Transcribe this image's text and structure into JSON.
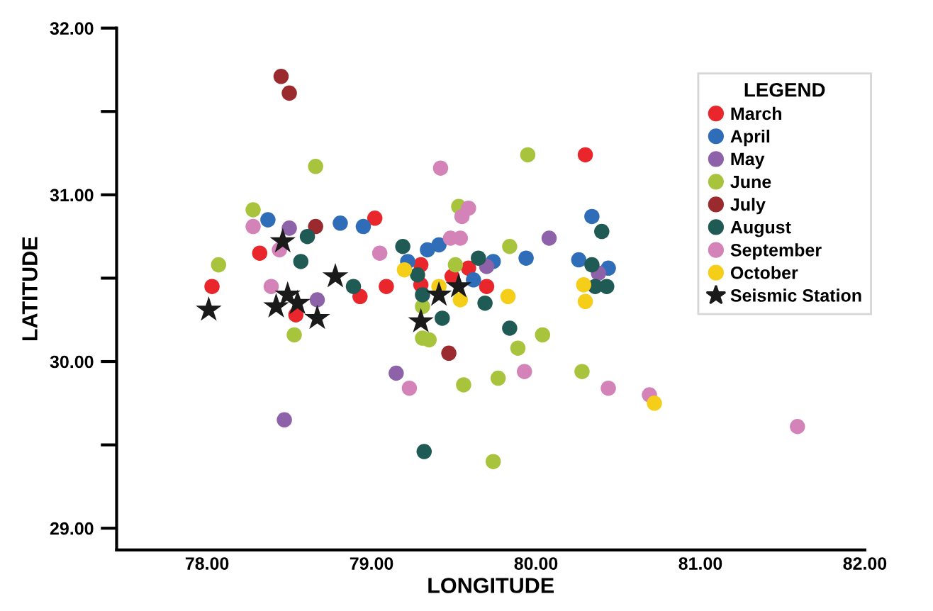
{
  "chart_data": {
    "type": "scatter",
    "xlabel": "LONGITUDE",
    "ylabel": "LATITUDE",
    "legend_title": "LEGEND",
    "legend": "top right",
    "grid": false,
    "marker": "circle",
    "xlim": [
      77.45,
      82.0
    ],
    "xticks": [
      {
        "value": 78,
        "label": "78.00"
      },
      {
        "value": 79,
        "label": "79.00"
      },
      {
        "value": 80,
        "label": "80.00"
      },
      {
        "value": 81,
        "label": "81.00"
      },
      {
        "value": 82,
        "label": "82.00"
      }
    ],
    "ylim": [
      28.87,
      32.0
    ],
    "yticks": [
      {
        "value": 29,
        "label": "29.00"
      },
      {
        "value": 29.5,
        "label": null
      },
      {
        "value": 30,
        "label": "30.00"
      },
      {
        "value": 30.5,
        "label": null
      },
      {
        "value": 31,
        "label": "31.00"
      },
      {
        "value": 31.5,
        "label": null
      },
      {
        "value": 32,
        "label": "32.00"
      }
    ],
    "series": [
      {
        "name": "March",
        "color": "#e8262b",
        "x": [
          78.03,
          78.32,
          78.54,
          78.93,
          79.02,
          79.09,
          79.3,
          79.3,
          79.49,
          79.59,
          79.7,
          80.3
        ],
        "values": [
          30.45,
          30.65,
          30.28,
          30.39,
          30.86,
          30.45,
          30.58,
          30.46,
          30.51,
          30.56,
          30.45,
          31.24
        ]
      },
      {
        "name": "April",
        "color": "#2f6db8",
        "x": [
          78.37,
          78.81,
          78.95,
          79.22,
          79.34,
          79.41,
          79.62,
          79.74,
          79.94,
          80.26,
          80.34,
          80.44
        ],
        "values": [
          30.85,
          30.83,
          30.81,
          30.6,
          30.67,
          30.7,
          30.49,
          30.6,
          30.62,
          30.61,
          30.87,
          30.56
        ]
      },
      {
        "name": "May",
        "color": "#8e62a8",
        "x": [
          78.5,
          78.67,
          79.7,
          80.08,
          80.38,
          79.15,
          78.47
        ],
        "values": [
          30.8,
          30.37,
          30.57,
          30.74,
          30.53,
          29.93,
          29.65
        ]
      },
      {
        "name": "June",
        "color": "#a7c43c",
        "x": [
          78.66,
          78.28,
          78.07,
          78.53,
          79.53,
          79.95,
          79.84,
          79.51,
          79.31,
          79.31,
          79.35,
          80.04,
          79.89,
          79.56,
          79.77,
          80.28,
          79.74
        ],
        "values": [
          31.17,
          30.91,
          30.58,
          30.16,
          30.93,
          31.24,
          30.69,
          30.58,
          30.33,
          30.14,
          30.13,
          30.16,
          30.08,
          29.86,
          29.9,
          29.94,
          29.4
        ]
      },
      {
        "name": "July",
        "color": "#9b2a2e",
        "x": [
          78.45,
          78.5,
          78.66,
          79.47
        ],
        "values": [
          31.71,
          31.61,
          30.81,
          30.05
        ]
      },
      {
        "name": "August",
        "color": "#1f5a55",
        "x": [
          78.61,
          78.57,
          78.89,
          79.19,
          79.28,
          79.31,
          79.43,
          79.65,
          79.69,
          79.84,
          80.34,
          80.36,
          80.43,
          80.4,
          79.32
        ],
        "values": [
          30.75,
          30.6,
          30.45,
          30.69,
          30.52,
          30.4,
          30.26,
          30.62,
          30.35,
          30.2,
          30.58,
          30.45,
          30.45,
          30.78,
          29.46
        ]
      },
      {
        "name": "September",
        "color": "#d483b8",
        "x": [
          78.28,
          78.44,
          78.39,
          79.05,
          79.42,
          79.55,
          79.59,
          79.48,
          79.54,
          79.23,
          79.93,
          80.44,
          80.69,
          81.59
        ],
        "values": [
          30.81,
          30.67,
          30.45,
          30.65,
          31.16,
          30.87,
          30.92,
          30.74,
          30.74,
          29.84,
          29.94,
          29.84,
          29.8,
          29.61
        ]
      },
      {
        "name": "October",
        "color": "#f5ce1a",
        "x": [
          79.2,
          79.41,
          79.54,
          79.83,
          80.29,
          80.3,
          80.72
        ],
        "values": [
          30.55,
          30.45,
          30.37,
          30.39,
          30.46,
          30.36,
          29.75
        ]
      },
      {
        "name": "Seismic Station",
        "color": "#1a1a1a",
        "marker": "star",
        "x": [
          78.01,
          78.46,
          78.49,
          78.42,
          78.55,
          78.78,
          78.67,
          79.3,
          79.41,
          79.53
        ],
        "values": [
          30.31,
          30.72,
          30.4,
          30.33,
          30.35,
          30.51,
          30.26,
          30.24,
          30.4,
          30.45
        ]
      }
    ]
  }
}
